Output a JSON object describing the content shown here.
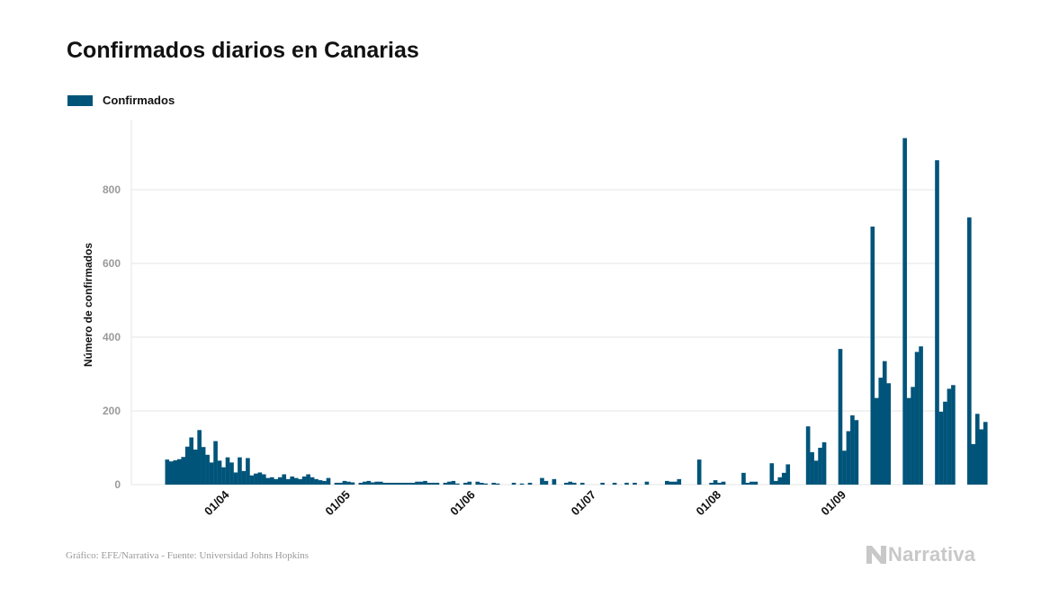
{
  "page": {
    "title": "Confirmados diarios en Canarias",
    "footer": "Gráfico: EFE/Narrativa - Fuente: Universidad Johns Hopkins",
    "logo_text": "Narrativa",
    "logo_icon": "narrativa-n-icon"
  },
  "colors": {
    "bar": "#00547a",
    "grid": "#e6e6e6",
    "axis_tick": "#9a9a9a",
    "logo": "#c8c8c8"
  },
  "chart_data": {
    "type": "bar",
    "title": "Confirmados diarios en Canarias",
    "ylabel": "Número de confirmados",
    "xlabel": "",
    "ylim": [
      0,
      950
    ],
    "yticks": [
      0,
      200,
      400,
      600,
      800
    ],
    "grid": true,
    "legend_position": "top-left",
    "x_start": "2020-03-20",
    "x_tick_labels": [
      {
        "label": "01/04",
        "date": "2020-04-01"
      },
      {
        "label": "01/05",
        "date": "2020-05-01"
      },
      {
        "label": "01/06",
        "date": "2020-06-01"
      },
      {
        "label": "01/07",
        "date": "2020-07-01"
      },
      {
        "label": "01/08",
        "date": "2020-08-01"
      },
      {
        "label": "01/09",
        "date": "2020-09-01"
      }
    ],
    "series": [
      {
        "name": "Confirmados",
        "values": [
          68,
          63,
          66,
          69,
          75,
          103,
          128,
          95,
          148,
          102,
          81,
          60,
          118,
          65,
          47,
          74,
          60,
          33,
          74,
          37,
          72,
          25,
          30,
          33,
          28,
          18,
          20,
          15,
          20,
          28,
          15,
          22,
          18,
          15,
          22,
          28,
          20,
          15,
          12,
          10,
          18,
          0,
          5,
          5,
          10,
          8,
          6,
          0,
          5,
          8,
          10,
          6,
          8,
          8,
          5,
          5,
          5,
          5,
          5,
          5,
          5,
          5,
          8,
          8,
          10,
          5,
          5,
          5,
          0,
          5,
          8,
          10,
          3,
          0,
          5,
          8,
          0,
          8,
          5,
          3,
          0,
          5,
          3,
          0,
          0,
          0,
          5,
          0,
          3,
          0,
          5,
          0,
          0,
          18,
          10,
          0,
          15,
          0,
          0,
          5,
          8,
          5,
          0,
          5,
          0,
          0,
          0,
          0,
          5,
          0,
          0,
          5,
          0,
          0,
          5,
          0,
          5,
          0,
          0,
          8,
          0,
          0,
          0,
          0,
          10,
          8,
          8,
          15,
          0,
          0,
          0,
          0,
          68,
          0,
          0,
          5,
          12,
          5,
          8,
          0,
          0,
          0,
          0,
          32,
          5,
          8,
          8,
          0,
          0,
          0,
          58,
          10,
          20,
          32,
          55,
          0,
          0,
          0,
          0,
          158,
          88,
          65,
          100,
          115,
          0,
          0,
          0,
          368,
          92,
          145,
          188,
          175,
          0,
          0,
          0,
          700,
          235,
          290,
          335,
          275,
          0,
          0,
          0,
          940,
          235,
          265,
          360,
          375,
          0,
          0,
          0,
          880,
          198,
          225,
          260,
          270,
          0,
          0,
          0,
          725,
          110,
          192,
          150,
          170
        ]
      }
    ]
  }
}
